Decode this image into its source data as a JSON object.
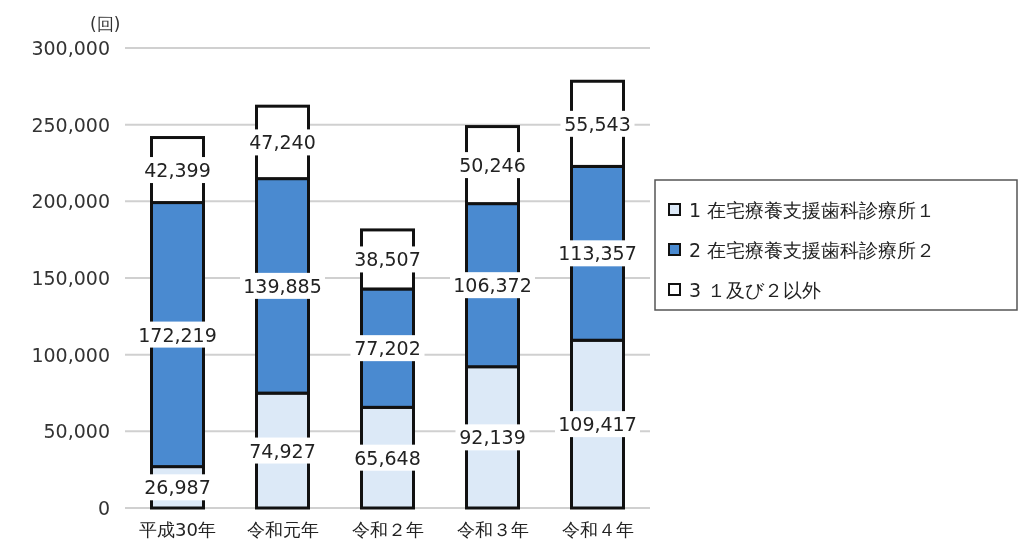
{
  "chart_data": {
    "type": "bar",
    "stacked": true,
    "ylabel": "(回)",
    "categories": [
      "平成30年",
      "令和元年",
      "令和２年",
      "令和３年",
      "令和４年"
    ],
    "series": [
      {
        "name": "1 在宅療養支援歯科診療所１",
        "color": "#dce9f7",
        "values": [
          26987,
          74927,
          65648,
          92139,
          109417
        ],
        "value_labels": [
          "26,987",
          "74,927",
          "65,648",
          "92,139",
          "109,417"
        ]
      },
      {
        "name": "2 在宅療養支援歯科診療所２",
        "color": "#4a8ad0",
        "values": [
          172219,
          139885,
          77202,
          106372,
          113357
        ],
        "value_labels": [
          "172,219",
          "139,885",
          "77,202",
          "106,372",
          "113,357"
        ]
      },
      {
        "name": "3 １及び２以外",
        "color": "#ffffff",
        "values": [
          42399,
          47240,
          38507,
          50246,
          55543
        ],
        "value_labels": [
          "42,399",
          "47,240",
          "38,507",
          "50,246",
          "55,543"
        ]
      }
    ],
    "ylim": [
      0,
      300000
    ],
    "yticks": [
      {
        "value": 0,
        "label": "0"
      },
      {
        "value": 50000,
        "label": "50,000"
      },
      {
        "value": 100000,
        "label": "100,000"
      },
      {
        "value": 150000,
        "label": "150,000"
      },
      {
        "value": 200000,
        "label": "200,000"
      },
      {
        "value": 250000,
        "label": "250,000"
      },
      {
        "value": 300000,
        "label": "300,000"
      }
    ],
    "grid": "y",
    "legend": "right"
  }
}
